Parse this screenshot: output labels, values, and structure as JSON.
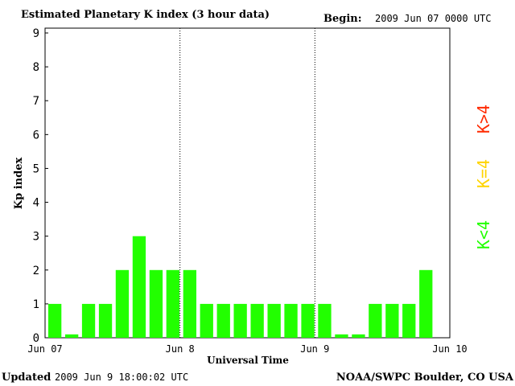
{
  "header": {
    "title": "Estimated Planetary K index (3 hour data)",
    "begin_label": "Begin:",
    "begin_value": "2009 Jun 07 0000 UTC"
  },
  "footer": {
    "updated_label": "Updated",
    "updated_value": "2009 Jun  9 18:00:02 UTC",
    "source": "NOAA/SWPC Boulder, CO USA"
  },
  "legend": {
    "high": {
      "label": "K>4",
      "color": "#ff2a00"
    },
    "mid": {
      "label": "K=4",
      "color": "#ffd400"
    },
    "low": {
      "label": "K<4",
      "color": "#22ff00"
    }
  },
  "chart_data": {
    "type": "bar",
    "xlabel": "Universal Time",
    "ylabel": "Kp index",
    "ylim": [
      0,
      9
    ],
    "yticks": [
      0,
      1,
      2,
      3,
      4,
      5,
      6,
      7,
      8,
      9
    ],
    "xticks": [
      "Jun 07",
      "Jun 8",
      "Jun 9",
      "Jun 10"
    ],
    "grid": "dotted vertical lines at day boundaries",
    "bar_color": "#22ff00",
    "values": [
      1,
      0.1,
      1,
      1,
      2,
      3,
      2,
      2,
      2,
      1,
      1,
      1,
      1,
      1,
      1,
      1,
      1,
      0.1,
      0.1,
      1,
      1,
      1,
      2
    ]
  }
}
